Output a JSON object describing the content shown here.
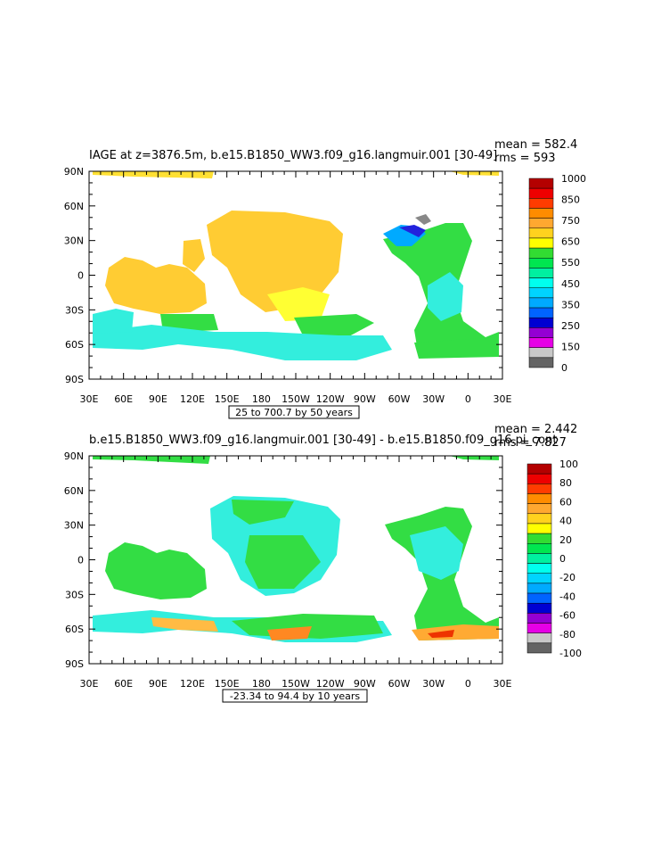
{
  "chart_data": [
    {
      "type": "heatmap",
      "title": "IAGE at z=3876.5m, b.e15.B1850_WW3.f09_g16.langmuir.001 [30-49]",
      "stats": {
        "mean_label": "mean = 582.4",
        "rms_label": "rms = 593"
      },
      "x_ticks": [
        "30E",
        "60E",
        "90E",
        "120E",
        "150E",
        "180",
        "150W",
        "120W",
        "90W",
        "60W",
        "30W",
        "0",
        "30E"
      ],
      "y_ticks": [
        "90N",
        "60N",
        "30N",
        "0",
        "30S",
        "60S",
        "90S"
      ],
      "xlim": [
        30,
        390
      ],
      "ylim": [
        -90,
        90
      ],
      "contour_info": "25 to 700.7 by 50 years",
      "colorbar": {
        "labels": [
          "1000",
          "850",
          "750",
          "650",
          "550",
          "450",
          "350",
          "250",
          "150",
          "0"
        ],
        "colors": [
          "#b40000",
          "#ee0000",
          "#ff3c00",
          "#ff8c00",
          "#ffa830",
          "#ffd21e",
          "#ffff00",
          "#32dc32",
          "#00e650",
          "#00f0a0",
          "#00ffee",
          "#00d4ff",
          "#00aaff",
          "#0064ff",
          "#0000d2",
          "#9400d3",
          "#e600e6",
          "#c8c8c8",
          "#646464"
        ]
      },
      "data_summary": "Ideal age field; mostly 600-700 yrs in Pacific, 450-550 yrs in Atlantic, younger (<300) water near North Atlantic source"
    },
    {
      "type": "heatmap",
      "title": "b.e15.B1850_WW3.f09_g16.langmuir.001 [30-49] - b.e15.B1850.f09_g16.pi_cont",
      "stats": {
        "mean_label": "mean = 2.442",
        "rms_label": "rms = 7.827"
      },
      "x_ticks": [
        "30E",
        "60E",
        "90E",
        "120E",
        "150E",
        "180",
        "150W",
        "120W",
        "90W",
        "60W",
        "30W",
        "0",
        "30E"
      ],
      "y_ticks": [
        "90N",
        "60N",
        "30N",
        "0",
        "30S",
        "60S",
        "90S"
      ],
      "xlim": [
        30,
        390
      ],
      "ylim": [
        -90,
        90
      ],
      "contour_info": "-23.34 to 94.4 by 10 years",
      "colorbar": {
        "labels": [
          "100",
          "80",
          "60",
          "40",
          "20",
          "0",
          "-20",
          "-40",
          "-60",
          "-80",
          "-100"
        ],
        "colors": [
          "#b40000",
          "#ee0000",
          "#ff3c00",
          "#ff8c00",
          "#ffa830",
          "#ffd21e",
          "#ffff00",
          "#32dc32",
          "#00e650",
          "#00f0a0",
          "#00ffee",
          "#00d4ff",
          "#00aaff",
          "#0064ff",
          "#0000d2",
          "#9400d3",
          "#e600e6",
          "#c8c8c8",
          "#646464"
        ]
      },
      "data_summary": "Difference field mostly between -20 and +20 yrs; largest positive anomalies (40-100 yrs) along Southern Ocean near Antarctica"
    }
  ]
}
